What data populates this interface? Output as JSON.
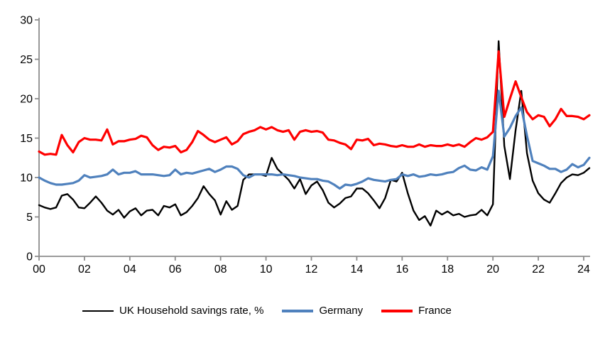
{
  "page": {
    "background": "#ffffff"
  },
  "chart_data": {
    "type": "line",
    "title": "",
    "xlabel": "",
    "ylabel": "",
    "x_unit": "quarterly, years 2000 to mid-2024",
    "x_start": 2000.0,
    "x_step": 0.25,
    "xlim": [
      2000,
      2024.25
    ],
    "ylim": [
      0,
      30
    ],
    "y_ticks": [
      0,
      5,
      10,
      15,
      20,
      25,
      30
    ],
    "x_ticks": [
      2000,
      2002,
      2004,
      2006,
      2008,
      2010,
      2012,
      2014,
      2016,
      2018,
      2020,
      2022,
      2024
    ],
    "x_tick_labels": [
      "00",
      "02",
      "04",
      "06",
      "08",
      "10",
      "12",
      "14",
      "16",
      "18",
      "20",
      "22",
      "24"
    ],
    "grid": false,
    "legend_position": "bottom-center",
    "axis_color": "#8C8C8C",
    "tick_label_color": "#000000",
    "series": [
      {
        "name": "UK Household savings rate, %",
        "color": "#000000",
        "values": [
          6.5,
          6.2,
          6.0,
          6.2,
          7.7,
          7.9,
          7.2,
          6.2,
          6.1,
          6.8,
          7.6,
          6.8,
          5.8,
          5.3,
          5.9,
          4.9,
          5.7,
          6.1,
          5.2,
          5.8,
          5.9,
          5.2,
          6.4,
          6.2,
          6.6,
          5.2,
          5.6,
          6.4,
          7.4,
          8.9,
          7.9,
          7.1,
          5.3,
          7.0,
          5.9,
          6.4,
          9.7,
          10.4,
          10.4,
          10.4,
          10.2,
          12.5,
          11.1,
          10.4,
          9.7,
          8.6,
          9.8,
          7.9,
          9.0,
          9.5,
          8.4,
          6.8,
          6.2,
          6.7,
          7.4,
          7.6,
          8.6,
          8.6,
          8.0,
          7.1,
          6.1,
          7.4,
          9.7,
          9.5,
          10.6,
          8.0,
          5.8,
          4.6,
          5.1,
          3.9,
          5.8,
          5.3,
          5.7,
          5.2,
          5.4,
          5.0,
          5.2,
          5.3,
          5.9,
          5.2,
          6.6,
          27.3,
          14.0,
          9.8,
          16.0,
          21.0,
          13.1,
          9.6,
          8.0,
          7.2,
          6.8,
          8.0,
          9.3,
          10.0,
          10.4,
          10.3,
          10.6,
          11.2
        ]
      },
      {
        "name": "Germany",
        "color": "#4F81BD",
        "values": [
          10.0,
          9.6,
          9.3,
          9.1,
          9.1,
          9.2,
          9.3,
          9.6,
          10.3,
          10.0,
          10.1,
          10.2,
          10.4,
          11.0,
          10.4,
          10.6,
          10.6,
          10.8,
          10.4,
          10.4,
          10.4,
          10.3,
          10.2,
          10.3,
          11.0,
          10.4,
          10.6,
          10.5,
          10.7,
          10.9,
          11.1,
          10.7,
          11.0,
          11.4,
          11.4,
          11.1,
          10.3,
          10.0,
          10.4,
          10.4,
          10.4,
          10.4,
          10.3,
          10.4,
          10.3,
          10.2,
          10.0,
          9.9,
          9.8,
          9.8,
          9.6,
          9.5,
          9.1,
          8.6,
          9.1,
          9.0,
          9.2,
          9.5,
          9.9,
          9.7,
          9.6,
          9.5,
          9.7,
          9.8,
          10.4,
          10.2,
          10.4,
          10.1,
          10.2,
          10.4,
          10.3,
          10.4,
          10.6,
          10.7,
          11.2,
          11.5,
          11.0,
          10.9,
          11.3,
          11.0,
          12.7,
          21.0,
          15.2,
          16.3,
          17.8,
          18.9,
          15.3,
          12.1,
          11.8,
          11.5,
          11.1,
          11.1,
          10.7,
          11.0,
          11.7,
          11.3,
          11.6,
          12.5
        ]
      },
      {
        "name": "France",
        "color": "#FF0000",
        "values": [
          13.3,
          12.9,
          13.0,
          12.9,
          15.4,
          14.1,
          13.2,
          14.5,
          15.0,
          14.8,
          14.8,
          14.7,
          16.1,
          14.2,
          14.6,
          14.6,
          14.8,
          14.9,
          15.3,
          15.1,
          14.1,
          13.5,
          13.9,
          13.8,
          14.0,
          13.2,
          13.5,
          14.5,
          15.9,
          15.4,
          14.8,
          14.5,
          14.8,
          15.1,
          14.2,
          14.6,
          15.5,
          15.8,
          16.0,
          16.4,
          16.1,
          16.4,
          16.0,
          15.8,
          16.0,
          14.8,
          15.8,
          16.0,
          15.8,
          15.9,
          15.7,
          14.8,
          14.7,
          14.4,
          14.2,
          13.6,
          14.8,
          14.7,
          14.9,
          14.1,
          14.3,
          14.2,
          14.0,
          13.9,
          14.1,
          13.9,
          13.9,
          14.2,
          13.9,
          14.1,
          14.0,
          14.0,
          14.2,
          14.0,
          14.2,
          13.9,
          14.5,
          15.0,
          14.8,
          15.1,
          15.8,
          26.0,
          17.7,
          20.0,
          22.2,
          20.2,
          18.3,
          17.4,
          17.9,
          17.7,
          16.5,
          17.4,
          18.7,
          17.8,
          17.8,
          17.7,
          17.4,
          17.9
        ]
      }
    ]
  }
}
